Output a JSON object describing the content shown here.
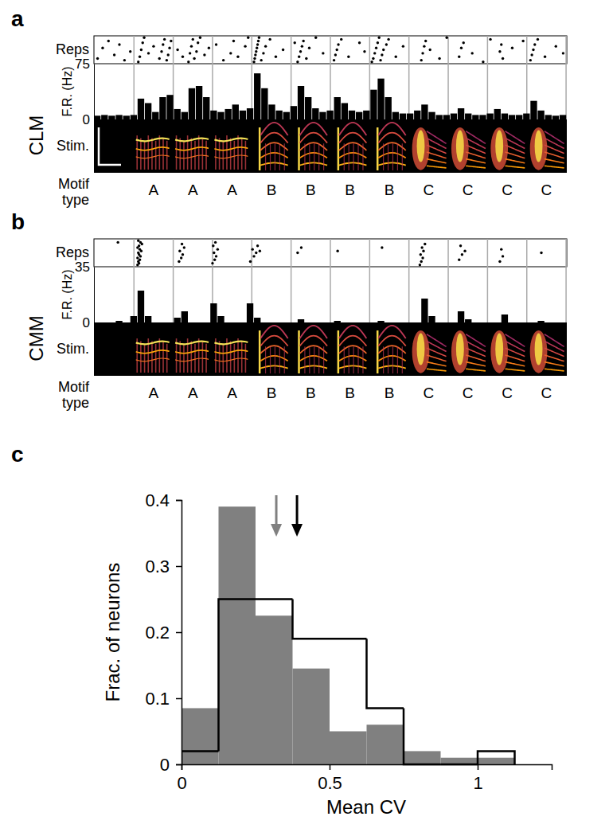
{
  "chart_data": [
    {
      "type": "scatter",
      "title": "a",
      "label": "CLM",
      "y_label": "Reps",
      "x": [
        0.05,
        0.12,
        0.2,
        0.28,
        0.35,
        0.42,
        0.5,
        0.61,
        0.63,
        0.65,
        0.67,
        0.69,
        0.75,
        0.82,
        0.9,
        0.93,
        0.95,
        0.97,
        1.0,
        1.02,
        1.04,
        1.06,
        1.15,
        1.22,
        1.3,
        1.32,
        1.34,
        1.36,
        1.38,
        1.41,
        1.43,
        1.46,
        1.52,
        1.58,
        1.68,
        1.78,
        1.88,
        1.92,
        1.98,
        2.08,
        2.12,
        2.2,
        2.21,
        2.22,
        2.23,
        2.24,
        2.25,
        2.26,
        2.27,
        2.3,
        2.33,
        2.36,
        2.42,
        2.5,
        2.6,
        2.76,
        2.8,
        2.82,
        2.84,
        2.86,
        2.88,
        2.92,
        2.96,
        3.05,
        3.15,
        3.3,
        3.32,
        3.34,
        3.36,
        3.4,
        3.5,
        3.65,
        3.72,
        3.82,
        3.84,
        3.86,
        3.88,
        3.9,
        3.92,
        3.94,
        3.96,
        3.98,
        4.02,
        4.05,
        4.15,
        4.25,
        4.5,
        4.52,
        4.54,
        4.56,
        4.62,
        4.75,
        4.85,
        5.02,
        5.05,
        5.08,
        5.2,
        5.35,
        5.45,
        5.58,
        5.6,
        5.62,
        5.75,
        5.9,
        6.0,
        6.02,
        6.04,
        6.06,
        6.1,
        6.2,
        6.35,
        6.45
      ],
      "y": [
        3,
        9,
        13,
        5,
        11,
        2,
        7,
        1,
        4,
        8,
        12,
        15,
        6,
        10,
        3,
        7,
        11,
        14,
        2,
        5,
        9,
        13,
        8,
        4,
        1,
        6,
        10,
        14,
        3,
        7,
        12,
        15,
        5,
        9,
        11,
        2,
        6,
        13,
        4,
        10,
        15,
        1,
        3,
        5,
        7,
        9,
        11,
        13,
        15,
        2,
        6,
        10,
        14,
        4,
        8,
        12,
        1,
        4,
        7,
        10,
        13,
        3,
        9,
        15,
        6,
        2,
        5,
        8,
        11,
        14,
        4,
        12,
        7,
        1,
        3,
        6,
        9,
        12,
        15,
        2,
        5,
        8,
        11,
        14,
        4,
        10,
        2,
        6,
        10,
        13,
        8,
        3,
        15,
        4,
        9,
        12,
        6,
        1,
        14,
        7,
        11,
        3,
        9,
        13,
        2,
        5,
        8,
        11,
        14,
        4,
        10,
        6
      ],
      "xlim": [
        0,
        6.5
      ],
      "ylim": [
        0,
        16
      ],
      "tick_labels": false,
      "boundaries": [
        0.55,
        1.09,
        1.63,
        2.17,
        2.71,
        3.25,
        3.79,
        4.33,
        4.87,
        5.41,
        5.95,
        6.49
      ]
    },
    {
      "type": "histogram",
      "y_label": "F.R. (Hz)",
      "bins": [
        0,
        0.1,
        0.2,
        0.3,
        0.4,
        0.5,
        0.6,
        0.7,
        0.8,
        0.9,
        1,
        1.1,
        1.2,
        1.3,
        1.4,
        1.5,
        1.6,
        1.7,
        1.8,
        1.9,
        2,
        2.1,
        2.2,
        2.3,
        2.4,
        2.5,
        2.6,
        2.7,
        2.8,
        2.9,
        3,
        3.1,
        3.2,
        3.3,
        3.4,
        3.5,
        3.6,
        3.7,
        3.8,
        3.9,
        4,
        4.1,
        4.2,
        4.3,
        4.4,
        4.5,
        4.6,
        4.7,
        4.8,
        4.9,
        5,
        5.1,
        5.2,
        5.3,
        5.4,
        5.5,
        5.6,
        5.7,
        5.8,
        5.9,
        6,
        6.1,
        6.2,
        6.3,
        6.4,
        6.5
      ],
      "values": [
        5,
        6,
        5,
        6,
        5,
        6,
        28,
        22,
        10,
        30,
        33,
        14,
        10,
        42,
        45,
        30,
        12,
        10,
        14,
        20,
        12,
        15,
        62,
        42,
        20,
        12,
        10,
        18,
        45,
        30,
        15,
        10,
        12,
        30,
        22,
        12,
        10,
        12,
        40,
        55,
        30,
        10,
        8,
        8,
        12,
        20,
        10,
        6,
        6,
        8,
        15,
        8,
        6,
        6,
        8,
        14,
        8,
        6,
        6,
        8,
        25,
        12,
        6,
        5,
        6
      ],
      "color": "#000000",
      "xlim": [
        0,
        6.5
      ],
      "ylim": [
        0,
        75
      ],
      "yticks": [
        0,
        75
      ],
      "tick_labels": "y",
      "boundaries": [
        0.55,
        1.09,
        1.63,
        2.17,
        2.71,
        3.25,
        3.79,
        4.33,
        4.87,
        5.41,
        5.95,
        6.49
      ]
    },
    {
      "type": "spectrogram",
      "y_label": "Stim.",
      "x_label": "Motif type",
      "categories": [
        "A",
        "A",
        "A",
        "B",
        "B",
        "B",
        "B",
        "C",
        "C",
        "C",
        "C"
      ],
      "xlim": [
        0,
        6.5
      ],
      "tick_labels": "x",
      "boundaries": [
        0.55,
        1.09,
        1.63,
        2.17,
        2.71,
        3.25,
        3.79,
        4.33,
        4.87,
        5.41,
        5.95,
        6.49
      ]
    },
    {
      "type": "scatter",
      "title": "b",
      "label": "CMM",
      "y_label": "Reps",
      "x": [
        0.33,
        0.6,
        0.62,
        0.61,
        0.63,
        0.6,
        0.64,
        0.62,
        0.61,
        0.65,
        0.63,
        0.6,
        0.62,
        0.66,
        0.64,
        0.61,
        1.17,
        1.2,
        1.22,
        1.18,
        1.24,
        1.21,
        1.63,
        1.66,
        1.68,
        1.65,
        1.7,
        1.64,
        1.67,
        2.15,
        2.2,
        2.23,
        2.18,
        2.25,
        2.28,
        2.8,
        2.85,
        3.35,
        3.96,
        4.48,
        4.5,
        4.52,
        4.49,
        4.53,
        4.51,
        4.55,
        5.02,
        5.06,
        5.1,
        5.04,
        5.58,
        5.62,
        5.6,
        6.15
      ],
      "y": [
        14,
        1,
        2,
        3,
        4,
        5,
        6,
        7,
        8,
        9,
        10,
        11,
        12,
        13,
        14,
        15,
        3,
        5,
        7,
        9,
        11,
        13,
        2,
        4,
        6,
        8,
        10,
        12,
        14,
        3,
        6,
        8,
        10,
        12,
        9,
        8,
        11,
        9,
        11,
        1,
        3,
        5,
        7,
        9,
        11,
        13,
        4,
        7,
        9,
        12,
        3,
        6,
        10,
        8
      ],
      "xlim": [
        0,
        6.5
      ],
      "ylim": [
        0,
        16
      ],
      "tick_labels": false,
      "boundaries": [
        0.55,
        1.09,
        1.63,
        2.17,
        2.71,
        3.25,
        3.79,
        4.33,
        4.87,
        5.41,
        5.95,
        6.49
      ]
    },
    {
      "type": "histogram",
      "y_label": "F.R. (Hz)",
      "bins": [
        0,
        0.1,
        0.2,
        0.3,
        0.4,
        0.5,
        0.6,
        0.7,
        0.8,
        0.9,
        1,
        1.1,
        1.2,
        1.3,
        1.4,
        1.5,
        1.6,
        1.7,
        1.8,
        1.9,
        2,
        2.1,
        2.2,
        2.3,
        2.4,
        2.5,
        2.6,
        2.7,
        2.8,
        2.9,
        3,
        3.1,
        3.2,
        3.3,
        3.4,
        3.5,
        3.6,
        3.7,
        3.8,
        3.9,
        4,
        4.1,
        4.2,
        4.3,
        4.4,
        4.5,
        4.6,
        4.7,
        4.8,
        4.9,
        5,
        5.1,
        5.2,
        5.3,
        5.4,
        5.5,
        5.6,
        5.7,
        5.8,
        5.9,
        6,
        6.1,
        6.2,
        6.3,
        6.4,
        6.5
      ],
      "values": [
        0,
        0,
        0,
        1,
        0,
        4,
        20,
        4,
        0,
        0,
        0,
        3,
        7,
        0,
        0,
        0,
        12,
        4,
        0,
        0,
        0,
        12,
        3,
        0,
        0,
        0,
        0,
        0,
        2,
        0,
        0,
        0,
        0,
        1,
        0,
        0,
        0,
        0,
        0,
        1,
        0,
        0,
        0,
        0,
        0,
        15,
        4,
        0,
        0,
        0,
        7,
        2,
        0,
        0,
        0,
        0,
        5,
        0,
        0,
        0,
        0,
        1,
        0,
        0,
        0
      ],
      "color": "#000000",
      "xlim": [
        0,
        6.5
      ],
      "ylim": [
        0,
        35
      ],
      "yticks": [
        0,
        35
      ],
      "tick_labels": "y",
      "boundaries": [
        0.55,
        1.09,
        1.63,
        2.17,
        2.71,
        3.25,
        3.79,
        4.33,
        4.87,
        5.41,
        5.95,
        6.49
      ]
    },
    {
      "type": "spectrogram",
      "y_label": "Stim.",
      "x_label": "Motif type",
      "categories": [
        "A",
        "A",
        "A",
        "B",
        "B",
        "B",
        "B",
        "C",
        "C",
        "C",
        "C"
      ],
      "xlim": [
        0,
        6.5
      ],
      "tick_labels": "x",
      "boundaries": [
        0.55,
        1.09,
        1.63,
        2.17,
        2.71,
        3.25,
        3.79,
        4.33,
        4.87,
        5.41,
        5.95,
        6.49
      ]
    },
    {
      "type": "histogram",
      "title": "c",
      "x_label": "Mean CV",
      "y_label": "Frac. of neurons",
      "bins": [
        0,
        0.125,
        0.25,
        0.375,
        0.5,
        0.625,
        0.75,
        0.875,
        1,
        1.125
      ],
      "series": [
        {
          "type": "bar",
          "color": "#808080",
          "values": [
            0.085,
            0.39,
            0.225,
            0.145,
            0.05,
            0.06,
            0.02,
            0.01,
            0.01
          ]
        },
        {
          "type": "step",
          "color": "#000000",
          "values": [
            0.02,
            0.25,
            0.25,
            0.19,
            0.19,
            0.085,
            0,
            0,
            0.02
          ]
        }
      ],
      "means": [
        {
          "value": 0.32,
          "color": "#808080"
        },
        {
          "value": 0.39,
          "color": "#000000"
        }
      ],
      "xlim": [
        0,
        1.25
      ],
      "ylim": [
        0,
        0.4
      ],
      "xticks": [
        0,
        0.5,
        1
      ],
      "yticks": [
        0,
        0.1,
        0.2,
        0.3,
        0.4
      ]
    }
  ]
}
